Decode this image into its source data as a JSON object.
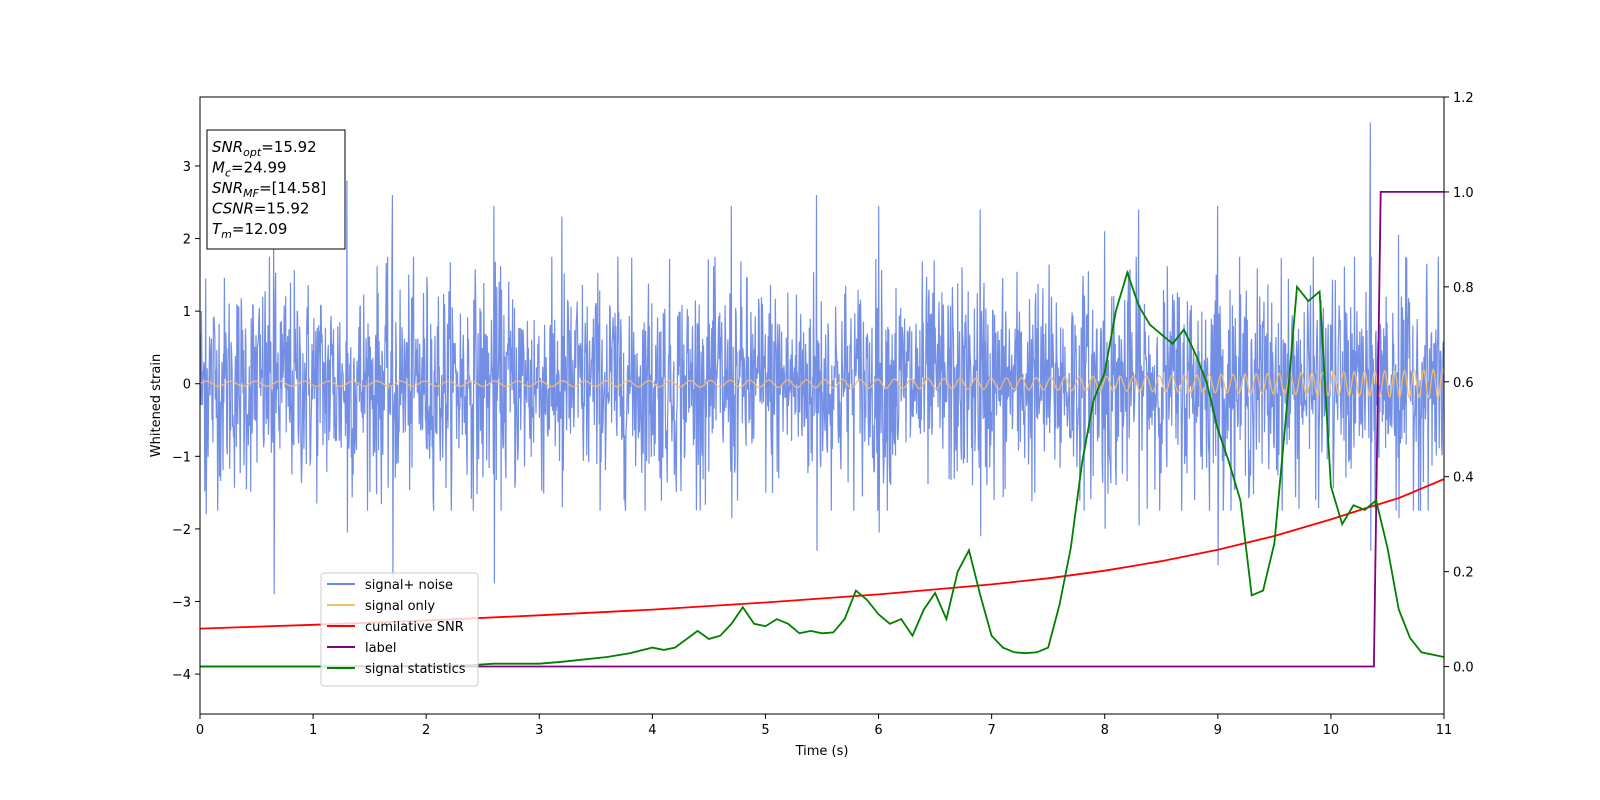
{
  "chart_data": {
    "type": "line",
    "xlabel": "Time (s)",
    "ylabel": "Whitened strain",
    "xlim": [
      0,
      11
    ],
    "ylim": [
      -4.55,
      3.95
    ],
    "y2lim": [
      -0.1,
      1.2
    ],
    "xticks": [
      0,
      1,
      2,
      3,
      4,
      5,
      6,
      7,
      8,
      9,
      10,
      11
    ],
    "yticks": [
      -4,
      -3,
      -2,
      -1,
      0,
      1,
      2,
      3
    ],
    "y2ticks": [
      "0.0",
      "0.2",
      "0.4",
      "0.6",
      "0.8",
      "1.0",
      "1.2"
    ],
    "grid": false,
    "legend_position": "lower-left",
    "info_box": [
      {
        "sym": "SNR",
        "sub": "opt",
        "val": "=15.92"
      },
      {
        "sym": "M",
        "sub": "c",
        "val": "=24.99"
      },
      {
        "sym": "SNR",
        "sub": "MF",
        "val": "=[14.58]"
      },
      {
        "sym": "CSNR",
        "sub": "",
        "val": "=15.92"
      },
      {
        "sym": "T",
        "sub": "m",
        "val": "=12.09"
      }
    ],
    "series": [
      {
        "name": "signal+ noise",
        "axis": "left",
        "color": "#6b88e4",
        "kind": "noise",
        "sigma": 0.72,
        "envelope": [
          [
            0.05,
            1.45,
            -1.8
          ],
          [
            0.65,
            2.1,
            -2.9
          ],
          [
            1.3,
            2.8,
            -2.05
          ],
          [
            1.7,
            2.6,
            -2.7
          ],
          [
            2.6,
            2.45,
            -2.75
          ],
          [
            3.2,
            2.3,
            -1.7
          ],
          [
            4.7,
            2.45,
            -1.85
          ],
          [
            5.45,
            2.6,
            -2.3
          ],
          [
            6.0,
            2.45,
            -2.05
          ],
          [
            6.9,
            2.4,
            -2.1
          ],
          [
            8.0,
            2.1,
            -2.0
          ],
          [
            8.3,
            2.4,
            -1.95
          ],
          [
            9.0,
            2.45,
            -2.5
          ],
          [
            10.35,
            3.6,
            -2.3
          ],
          [
            10.6,
            2.05,
            -1.85
          ]
        ]
      },
      {
        "name": "signal only",
        "axis": "left",
        "color": "#f5bf69",
        "kind": "chirp",
        "amp_start": 0.035,
        "amp_end": 0.2
      },
      {
        "name": "cumilative SNR",
        "axis": "right",
        "color": "#ff0000",
        "x": [
          0,
          1,
          2,
          3,
          4,
          5,
          6,
          7,
          7.5,
          8,
          8.5,
          9,
          9.5,
          10,
          10.3,
          10.6,
          10.8,
          11
        ],
        "y": [
          0.08,
          0.088,
          0.097,
          0.108,
          0.12,
          0.135,
          0.152,
          0.173,
          0.186,
          0.202,
          0.222,
          0.246,
          0.275,
          0.31,
          0.333,
          0.355,
          0.375,
          0.395
        ]
      },
      {
        "name": "label",
        "axis": "right",
        "color": "#800080",
        "x": [
          0,
          10.38,
          10.44,
          11
        ],
        "y": [
          0,
          0,
          1.0,
          1.0
        ]
      },
      {
        "name": "signal statistics",
        "axis": "right",
        "color": "#008000",
        "x": [
          0,
          1,
          2,
          2.4,
          2.6,
          3.0,
          3.2,
          3.6,
          3.8,
          4.0,
          4.1,
          4.2,
          4.4,
          4.5,
          4.6,
          4.7,
          4.8,
          4.9,
          5.0,
          5.1,
          5.2,
          5.3,
          5.4,
          5.5,
          5.6,
          5.7,
          5.8,
          5.9,
          6.0,
          6.1,
          6.2,
          6.3,
          6.4,
          6.5,
          6.6,
          6.7,
          6.8,
          6.9,
          7.0,
          7.1,
          7.2,
          7.3,
          7.4,
          7.5,
          7.6,
          7.7,
          7.8,
          7.9,
          8.0,
          8.1,
          8.2,
          8.3,
          8.4,
          8.5,
          8.6,
          8.7,
          8.8,
          8.9,
          9.0,
          9.1,
          9.2,
          9.3,
          9.4,
          9.5,
          9.6,
          9.7,
          9.8,
          9.9,
          10.0,
          10.1,
          10.2,
          10.3,
          10.4,
          10.5,
          10.6,
          10.7,
          10.8,
          11.0
        ],
        "y": [
          0,
          0,
          0.002,
          0.003,
          0.006,
          0.006,
          0.01,
          0.02,
          0.028,
          0.04,
          0.035,
          0.04,
          0.075,
          0.058,
          0.065,
          0.09,
          0.125,
          0.09,
          0.085,
          0.1,
          0.09,
          0.07,
          0.075,
          0.07,
          0.072,
          0.1,
          0.16,
          0.14,
          0.11,
          0.09,
          0.1,
          0.065,
          0.12,
          0.155,
          0.1,
          0.2,
          0.245,
          0.15,
          0.065,
          0.04,
          0.03,
          0.028,
          0.03,
          0.04,
          0.13,
          0.25,
          0.43,
          0.56,
          0.62,
          0.75,
          0.83,
          0.76,
          0.72,
          0.7,
          0.68,
          0.71,
          0.66,
          0.6,
          0.5,
          0.43,
          0.35,
          0.15,
          0.16,
          0.26,
          0.52,
          0.8,
          0.77,
          0.79,
          0.38,
          0.3,
          0.34,
          0.33,
          0.35,
          0.25,
          0.12,
          0.06,
          0.03,
          0.02
        ]
      }
    ]
  }
}
